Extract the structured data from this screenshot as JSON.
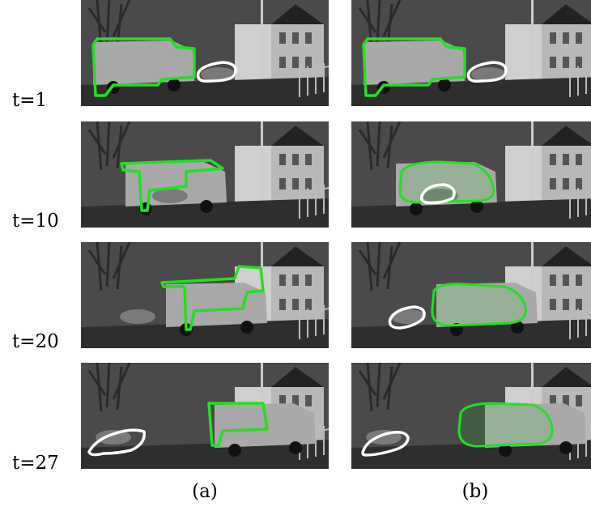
{
  "rows": [
    {
      "label": "t=1"
    },
    {
      "label": "t=10"
    },
    {
      "label": "t=20"
    },
    {
      "label": "t=27"
    }
  ],
  "columns": [
    {
      "label": "(a)"
    },
    {
      "label": "(b)"
    }
  ],
  "colors": {
    "contour_green": "#22e022",
    "contour_white": "#ffffff",
    "sky": "#4a4a4a",
    "road": "#2e2e2e",
    "van_body": "#a9a9a9",
    "building": "#cfcfcf"
  }
}
